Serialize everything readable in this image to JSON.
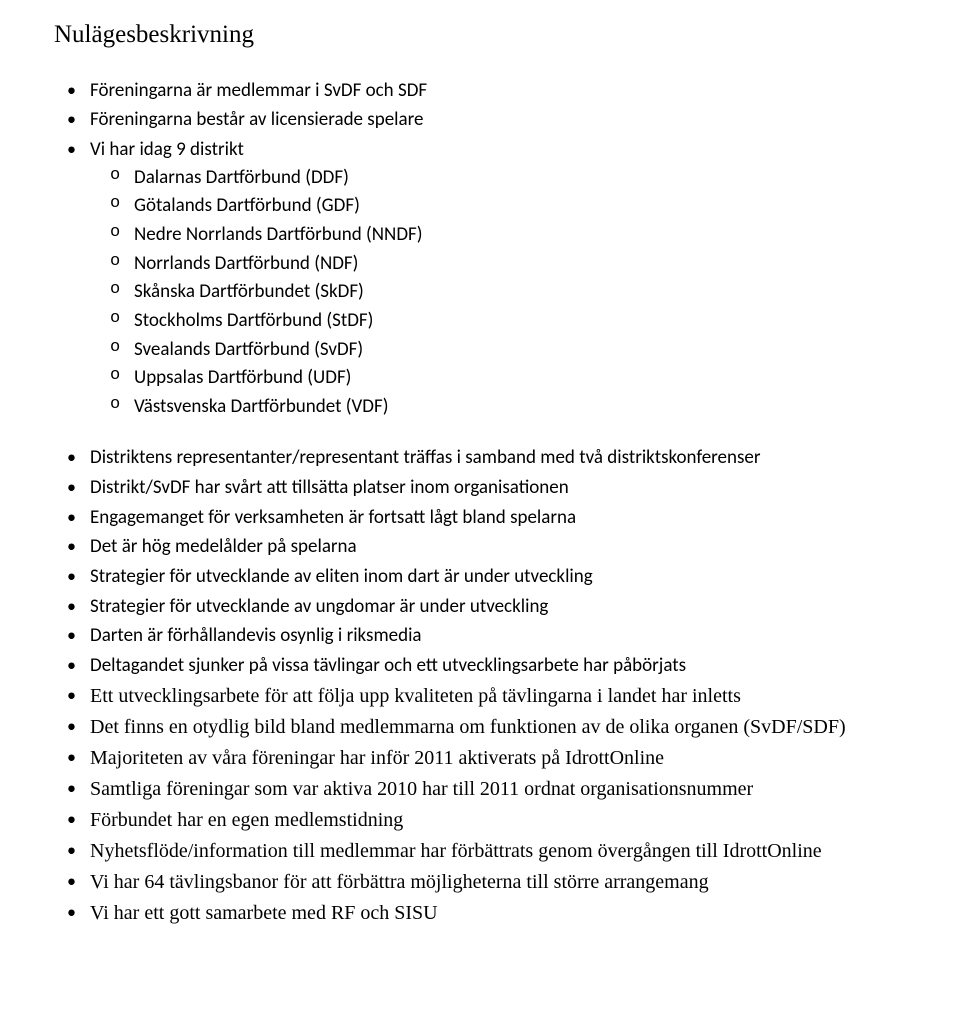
{
  "title": "Nulägesbeskrivning",
  "section1": [
    "Föreningarna är medlemmar i SvDF och SDF",
    "Föreningarna består av licensierade spelare",
    "Vi har idag 9 distrikt"
  ],
  "distrikt": [
    "Dalarnas Dartförbund (DDF)",
    "Götalands Dartförbund (GDF)",
    "Nedre Norrlands Dartförbund (NNDF)",
    "Norrlands Dartförbund (NDF)",
    "Skånska Dartförbundet (SkDF)",
    "Stockholms Dartförbund (StDF)",
    "Svealands Dartförbund (SvDF)",
    "Uppsalas Dartförbund (UDF)",
    "Västsvenska Dartförbundet (VDF)"
  ],
  "section2": [
    {
      "text": "Distriktens representanter/representant träffas i samband med två distriktskonferenser",
      "tnr": false
    },
    {
      "text": "Distrikt/SvDF har svårt att tillsätta platser inom organisationen",
      "tnr": false
    },
    {
      "text": "Engagemanget för verksamheten är fortsatt lågt bland spelarna",
      "tnr": false
    },
    {
      "text": "Det är hög medelålder på spelarna",
      "tnr": false
    },
    {
      "text": "Strategier för utvecklande av eliten inom dart är under utveckling",
      "tnr": false
    },
    {
      "text": "Strategier för utvecklande av ungdomar är under utveckling",
      "tnr": false
    },
    {
      "text": "Darten är förhållandevis osynlig i riksmedia",
      "tnr": false
    },
    {
      "text": "Deltagandet sjunker på vissa tävlingar och ett utvecklingsarbete har påbörjats",
      "tnr": false
    },
    {
      "text": "Ett utvecklingsarbete för att följa upp kvaliteten på tävlingarna i landet har inletts",
      "tnr": true
    },
    {
      "text": "Det finns en otydlig bild bland medlemmarna om funktionen av de olika organen (SvDF/SDF)",
      "tnr": true
    },
    {
      "text": "Majoriteten av våra föreningar har inför 2011 aktiverats på IdrottOnline",
      "tnr": true
    },
    {
      "text": "Samtliga föreningar som var aktiva 2010 har till 2011 ordnat organisationsnummer",
      "tnr": true
    },
    {
      "text": "Förbundet har en egen medlemstidning",
      "tnr": true
    },
    {
      "text": "Nyhetsflöde/information till medlemmar har förbättrats genom övergången till IdrottOnline",
      "tnr": true
    },
    {
      "text": "Vi har 64 tävlingsbanor för att förbättra möjligheterna till större arrangemang",
      "tnr": true
    },
    {
      "text": "Vi har ett gott samarbete med RF och SISU",
      "tnr": true
    }
  ]
}
